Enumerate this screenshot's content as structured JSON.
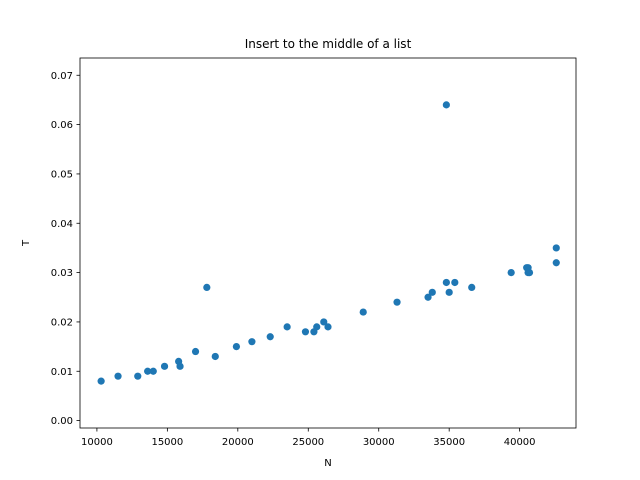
{
  "chart_data": {
    "type": "scatter",
    "title": "Insert to the middle of a list",
    "xlabel": "N",
    "ylabel": "T",
    "xlim": [
      8800,
      44000
    ],
    "ylim": [
      -0.0015,
      0.0735
    ],
    "xticks": [
      10000,
      15000,
      20000,
      25000,
      30000,
      35000,
      40000
    ],
    "xtick_labels": [
      "10000",
      "15000",
      "20000",
      "25000",
      "30000",
      "35000",
      "40000"
    ],
    "yticks": [
      0.0,
      0.01,
      0.02,
      0.03,
      0.04,
      0.05,
      0.06,
      0.07
    ],
    "ytick_labels": [
      "0.00",
      "0.01",
      "0.02",
      "0.03",
      "0.04",
      "0.05",
      "0.06",
      "0.07"
    ],
    "grid": false,
    "marker_color": "#1f77b4",
    "points": [
      {
        "x": 10300,
        "y": 0.008
      },
      {
        "x": 11500,
        "y": 0.009
      },
      {
        "x": 12900,
        "y": 0.009
      },
      {
        "x": 13600,
        "y": 0.01
      },
      {
        "x": 14000,
        "y": 0.01
      },
      {
        "x": 14800,
        "y": 0.011
      },
      {
        "x": 15800,
        "y": 0.012
      },
      {
        "x": 15900,
        "y": 0.011
      },
      {
        "x": 17000,
        "y": 0.014
      },
      {
        "x": 17800,
        "y": 0.027
      },
      {
        "x": 18400,
        "y": 0.013
      },
      {
        "x": 19900,
        "y": 0.015
      },
      {
        "x": 21000,
        "y": 0.016
      },
      {
        "x": 22300,
        "y": 0.017
      },
      {
        "x": 23500,
        "y": 0.019
      },
      {
        "x": 24800,
        "y": 0.018
      },
      {
        "x": 25400,
        "y": 0.018
      },
      {
        "x": 25600,
        "y": 0.019
      },
      {
        "x": 26100,
        "y": 0.02
      },
      {
        "x": 26400,
        "y": 0.019
      },
      {
        "x": 28900,
        "y": 0.022
      },
      {
        "x": 31300,
        "y": 0.024
      },
      {
        "x": 33500,
        "y": 0.025
      },
      {
        "x": 33800,
        "y": 0.026
      },
      {
        "x": 34800,
        "y": 0.028
      },
      {
        "x": 34800,
        "y": 0.064
      },
      {
        "x": 35000,
        "y": 0.026
      },
      {
        "x": 35400,
        "y": 0.028
      },
      {
        "x": 36600,
        "y": 0.027
      },
      {
        "x": 39400,
        "y": 0.03
      },
      {
        "x": 40500,
        "y": 0.031
      },
      {
        "x": 40600,
        "y": 0.031
      },
      {
        "x": 40600,
        "y": 0.03
      },
      {
        "x": 40700,
        "y": 0.03
      },
      {
        "x": 42600,
        "y": 0.035
      },
      {
        "x": 42600,
        "y": 0.032
      }
    ]
  }
}
